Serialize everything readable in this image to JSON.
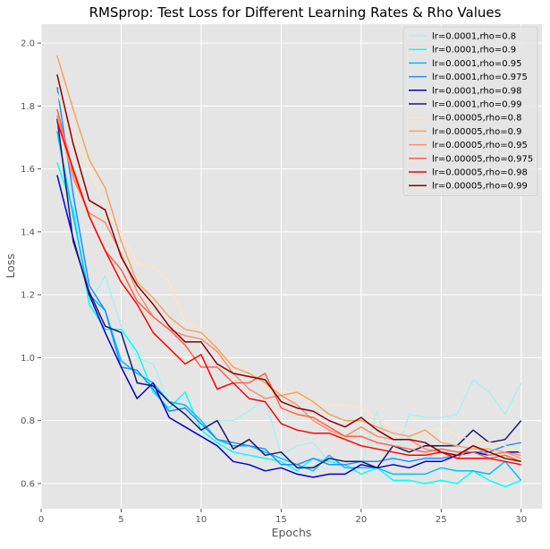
{
  "chart_data": {
    "type": "line",
    "title": "RMSprop: Test Loss for Different Learning Rates & Rho Values",
    "xlabel": "Epochs",
    "ylabel": "Loss",
    "xlim": [
      0,
      31.3
    ],
    "ylim": [
      0.52,
      2.06
    ],
    "xticks": [
      0,
      5,
      10,
      15,
      20,
      25,
      30
    ],
    "yticks": [
      0.6,
      0.8,
      1.0,
      1.2,
      1.4,
      1.6,
      1.8,
      2.0
    ],
    "ytick_labels": [
      "0.6",
      "0.8",
      "1.0",
      "1.2",
      "1.4",
      "1.6",
      "1.8",
      "2.0"
    ],
    "grid": true,
    "legend_position": "top-right",
    "x": [
      1,
      2,
      3,
      4,
      5,
      6,
      7,
      8,
      9,
      10,
      11,
      12,
      13,
      14,
      15,
      16,
      17,
      18,
      19,
      20,
      21,
      22,
      23,
      24,
      25,
      26,
      27,
      28,
      29,
      30
    ],
    "series": [
      {
        "name": "lr=0.0001,rho=0.8",
        "color": "#afeeee",
        "values": [
          1.7,
          1.5,
          1.17,
          1.26,
          1.1,
          1.0,
          0.98,
          0.86,
          0.84,
          0.79,
          0.8,
          0.8,
          0.83,
          0.87,
          0.69,
          0.72,
          0.73,
          0.67,
          0.65,
          0.65,
          0.83,
          0.66,
          0.82,
          0.81,
          0.81,
          0.82,
          0.93,
          0.89,
          0.82,
          0.92
        ]
      },
      {
        "name": "lr=0.0001,rho=0.9",
        "color": "#00ffff",
        "values": [
          1.62,
          1.47,
          1.17,
          1.09,
          1.09,
          1.02,
          0.89,
          0.84,
          0.89,
          0.77,
          0.73,
          0.7,
          0.69,
          0.68,
          0.67,
          0.64,
          0.68,
          0.67,
          0.66,
          0.63,
          0.65,
          0.61,
          0.61,
          0.6,
          0.61,
          0.6,
          0.64,
          0.61,
          0.59,
          0.61
        ]
      },
      {
        "name": "lr=0.0001,rho=0.95",
        "color": "#00bfff",
        "values": [
          1.72,
          1.45,
          1.2,
          1.15,
          0.99,
          0.95,
          0.92,
          0.86,
          0.85,
          0.8,
          0.74,
          0.72,
          0.72,
          0.7,
          0.68,
          0.66,
          0.64,
          0.69,
          0.65,
          0.65,
          0.65,
          0.63,
          0.63,
          0.63,
          0.65,
          0.64,
          0.64,
          0.63,
          0.67,
          0.61
        ]
      },
      {
        "name": "lr=0.0001,rho=0.975",
        "color": "#1e90ff",
        "values": [
          1.86,
          1.52,
          1.23,
          1.15,
          0.97,
          0.96,
          0.9,
          0.83,
          0.84,
          0.79,
          0.74,
          0.73,
          0.72,
          0.71,
          0.66,
          0.66,
          0.68,
          0.66,
          0.66,
          0.67,
          0.67,
          0.68,
          0.67,
          0.68,
          0.68,
          0.69,
          0.7,
          0.7,
          0.72,
          0.73
        ]
      },
      {
        "name": "lr=0.0001,rho=0.98",
        "color": "#0000cd",
        "values": [
          1.58,
          1.38,
          1.2,
          1.08,
          0.97,
          0.87,
          0.92,
          0.81,
          0.78,
          0.75,
          0.72,
          0.67,
          0.66,
          0.64,
          0.65,
          0.63,
          0.62,
          0.63,
          0.63,
          0.66,
          0.65,
          0.66,
          0.65,
          0.67,
          0.67,
          0.69,
          0.7,
          0.69,
          0.7,
          0.7
        ]
      },
      {
        "name": "lr=0.0001,rho=0.99",
        "color": "#191970",
        "values": [
          1.76,
          1.37,
          1.21,
          1.1,
          1.08,
          0.92,
          0.91,
          0.86,
          0.82,
          0.77,
          0.8,
          0.71,
          0.74,
          0.69,
          0.7,
          0.65,
          0.65,
          0.68,
          0.67,
          0.67,
          0.65,
          0.72,
          0.7,
          0.72,
          0.72,
          0.72,
          0.77,
          0.73,
          0.74,
          0.8
        ]
      },
      {
        "name": "lr=0.00005,rho=0.8",
        "color": "#ffe4c4",
        "values": [
          1.84,
          1.72,
          1.6,
          1.47,
          1.4,
          1.3,
          1.29,
          1.24,
          1.11,
          1.09,
          1.03,
          0.98,
          0.96,
          0.9,
          0.9,
          0.88,
          0.86,
          0.85,
          0.85,
          0.84,
          0.81,
          0.78,
          0.77,
          0.76,
          0.78,
          0.75,
          0.74,
          0.73,
          0.72,
          0.7
        ]
      },
      {
        "name": "lr=0.00005,rho=0.9",
        "color": "#f4a460",
        "values": [
          1.96,
          1.79,
          1.63,
          1.54,
          1.37,
          1.24,
          1.19,
          1.13,
          1.09,
          1.08,
          1.03,
          0.97,
          0.95,
          0.92,
          0.88,
          0.89,
          0.86,
          0.82,
          0.8,
          0.8,
          0.78,
          0.76,
          0.75,
          0.77,
          0.73,
          0.72,
          0.71,
          0.71,
          0.7,
          0.68
        ]
      },
      {
        "name": "lr=0.00005,rho=0.95",
        "color": "#ff8c69",
        "values": [
          1.77,
          1.57,
          1.46,
          1.43,
          1.33,
          1.21,
          1.13,
          1.09,
          1.07,
          1.06,
          1.02,
          0.95,
          0.9,
          0.87,
          0.88,
          0.85,
          0.8,
          0.77,
          0.75,
          0.78,
          0.75,
          0.74,
          0.74,
          0.71,
          0.7,
          0.68,
          0.72,
          0.69,
          0.7,
          0.69
        ]
      },
      {
        "name": "lr=0.00005,rho=0.975",
        "color": "#ff6347",
        "values": [
          1.79,
          1.59,
          1.45,
          1.34,
          1.28,
          1.18,
          1.13,
          1.09,
          1.04,
          0.97,
          0.97,
          0.92,
          0.92,
          0.95,
          0.84,
          0.82,
          0.81,
          0.78,
          0.75,
          0.75,
          0.73,
          0.72,
          0.71,
          0.7,
          0.71,
          0.7,
          0.7,
          0.68,
          0.69,
          0.67
        ]
      },
      {
        "name": "lr=0.00005,rho=0.98",
        "color": "#ff0000",
        "values": [
          1.75,
          1.6,
          1.45,
          1.34,
          1.24,
          1.17,
          1.08,
          1.03,
          0.98,
          1.01,
          0.9,
          0.92,
          0.87,
          0.86,
          0.79,
          0.77,
          0.76,
          0.76,
          0.74,
          0.72,
          0.71,
          0.7,
          0.69,
          0.69,
          0.7,
          0.68,
          0.68,
          0.68,
          0.67,
          0.66
        ]
      },
      {
        "name": "lr=0.00005,rho=0.99",
        "color": "#8b0000",
        "values": [
          1.9,
          1.68,
          1.5,
          1.47,
          1.32,
          1.23,
          1.17,
          1.1,
          1.05,
          1.05,
          0.98,
          0.95,
          0.94,
          0.93,
          0.86,
          0.84,
          0.83,
          0.8,
          0.78,
          0.81,
          0.77,
          0.74,
          0.74,
          0.73,
          0.7,
          0.69,
          0.72,
          0.7,
          0.68,
          0.67
        ]
      }
    ]
  }
}
